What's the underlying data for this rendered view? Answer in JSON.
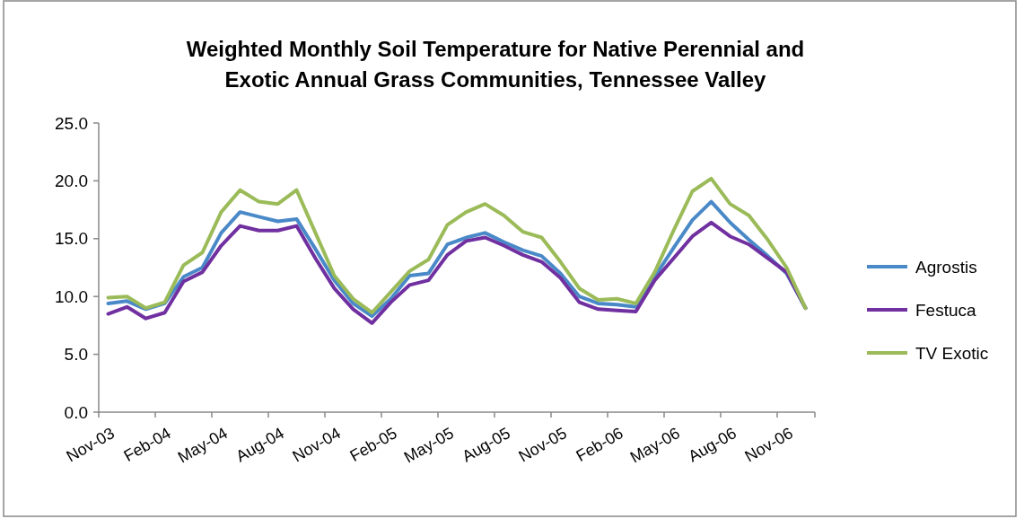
{
  "chart_data": {
    "type": "line",
    "title": "Weighted Monthly Soil Temperature for Native Perennial and\nExotic Annual Grass Communities, Tennessee Valley",
    "categories": [
      "Nov-03",
      null,
      null,
      "Feb-04",
      null,
      null,
      "May-04",
      null,
      null,
      "Aug-04",
      null,
      null,
      "Nov-04",
      null,
      null,
      "Feb-05",
      null,
      null,
      "May-05",
      null,
      null,
      "Aug-05",
      null,
      null,
      "Nov-05",
      null,
      null,
      "Feb-06",
      null,
      null,
      "May-06",
      null,
      null,
      "Aug-06",
      null,
      null,
      "Nov-06",
      null
    ],
    "series": [
      {
        "name": "Agrostis",
        "color": "#4a89c8",
        "values": [
          9.4,
          9.6,
          8.9,
          9.4,
          11.7,
          12.5,
          15.5,
          17.3,
          16.9,
          16.5,
          16.7,
          14.1,
          11.4,
          9.4,
          8.3,
          9.8,
          11.8,
          12.0,
          14.5,
          15.1,
          15.5,
          14.7,
          14.0,
          13.5,
          12.0,
          10.0,
          9.4,
          9.3,
          9.1,
          11.7,
          14.2,
          16.6,
          18.2,
          16.4,
          14.9,
          13.5,
          12.0,
          9.0
        ]
      },
      {
        "name": "Festuca",
        "color": "#7030a0",
        "values": [
          8.5,
          9.1,
          8.1,
          8.6,
          11.3,
          12.1,
          14.4,
          16.1,
          15.7,
          15.7,
          16.1,
          13.3,
          10.7,
          8.9,
          7.7,
          9.5,
          11.0,
          11.4,
          13.6,
          14.8,
          15.1,
          14.4,
          13.6,
          13.0,
          11.6,
          9.5,
          8.9,
          8.8,
          8.7,
          11.4,
          13.3,
          15.2,
          16.4,
          15.2,
          14.5,
          13.3,
          12.1,
          9.0
        ]
      },
      {
        "name": "TV Exotic",
        "color": "#9bbb59",
        "values": [
          9.9,
          10.0,
          9.0,
          9.5,
          12.7,
          13.8,
          17.3,
          19.2,
          18.2,
          18.0,
          19.2,
          15.5,
          11.8,
          9.8,
          8.6,
          10.4,
          12.2,
          13.2,
          16.2,
          17.3,
          18.0,
          17.0,
          15.6,
          15.1,
          13.0,
          10.7,
          9.7,
          9.8,
          9.4,
          12.1,
          15.7,
          19.1,
          20.2,
          18.0,
          17.0,
          14.9,
          12.5,
          9.0
        ]
      }
    ],
    "ylim": [
      0,
      25
    ],
    "yticks": [
      {
        "value": 0,
        "label": "0.0"
      },
      {
        "value": 5,
        "label": "5.0"
      },
      {
        "value": 10,
        "label": "10.0"
      },
      {
        "value": 15,
        "label": "15.0"
      },
      {
        "value": 20,
        "label": "20.0"
      },
      {
        "value": 25,
        "label": "25.0"
      }
    ],
    "grid": false,
    "legend": "right",
    "line_style": "solid",
    "marker": "none"
  }
}
